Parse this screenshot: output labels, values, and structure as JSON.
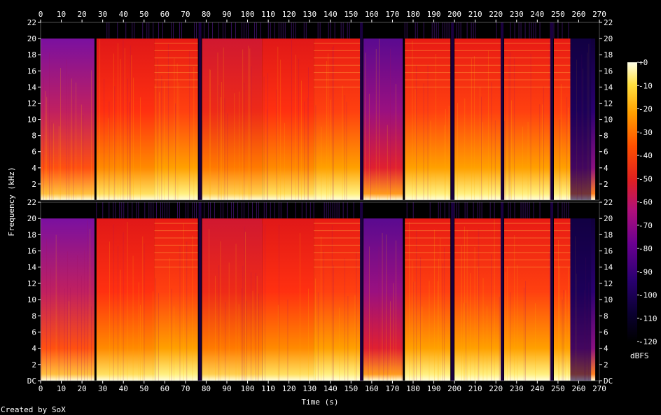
{
  "chart_data": {
    "type": "heatmap",
    "title": "",
    "xlabel": "Time (s)",
    "ylabel": "Frequency (kHz)",
    "xlim": [
      0,
      270
    ],
    "ylim_khz": [
      0,
      22
    ],
    "x_ticks": [
      0,
      10,
      20,
      30,
      40,
      50,
      60,
      70,
      80,
      90,
      100,
      110,
      120,
      130,
      140,
      150,
      160,
      170,
      180,
      190,
      200,
      210,
      220,
      230,
      240,
      250,
      260,
      270
    ],
    "channels": [
      {
        "name": "",
        "y_ticks": [
          "22",
          "20",
          "18",
          "16",
          "14",
          "12",
          "10",
          "8",
          "6",
          "4",
          "2"
        ]
      },
      {
        "name": "",
        "y_ticks": [
          "22",
          "20",
          "18",
          "16",
          "14",
          "12",
          "10",
          "8",
          "6",
          "4",
          "2",
          "DC"
        ]
      }
    ],
    "colorbar": {
      "label": "dBFS",
      "ticks": [
        "+0",
        "-10",
        "-20",
        "-30",
        "-40",
        "-50",
        "-60",
        "-70",
        "-80",
        "-90",
        "-100",
        "-110",
        "-120"
      ],
      "range_db": [
        -120,
        0
      ]
    },
    "segments": [
      {
        "start": 0,
        "end": 26,
        "level": "mid"
      },
      {
        "start": 27,
        "end": 55,
        "level": "loud"
      },
      {
        "start": 55,
        "end": 76,
        "level": "loud-banded"
      },
      {
        "start": 78,
        "end": 107,
        "level": "loud-soft"
      },
      {
        "start": 107,
        "end": 132,
        "level": "loud"
      },
      {
        "start": 132,
        "end": 155,
        "level": "loud-banded"
      },
      {
        "start": 156,
        "end": 175,
        "level": "quiet"
      },
      {
        "start": 176,
        "end": 198,
        "level": "loud-banded"
      },
      {
        "start": 200,
        "end": 223,
        "level": "loud-banded"
      },
      {
        "start": 224,
        "end": 247,
        "level": "loud-banded"
      },
      {
        "start": 248,
        "end": 256,
        "level": "loud-banded"
      },
      {
        "start": 256,
        "end": 268,
        "level": "fade"
      }
    ],
    "gaps": [
      77,
      155,
      199,
      223,
      247
    ]
  },
  "footer": {
    "credit": "Created by SoX"
  },
  "colors": {
    "background": "#000000",
    "text": "#ffffff"
  }
}
